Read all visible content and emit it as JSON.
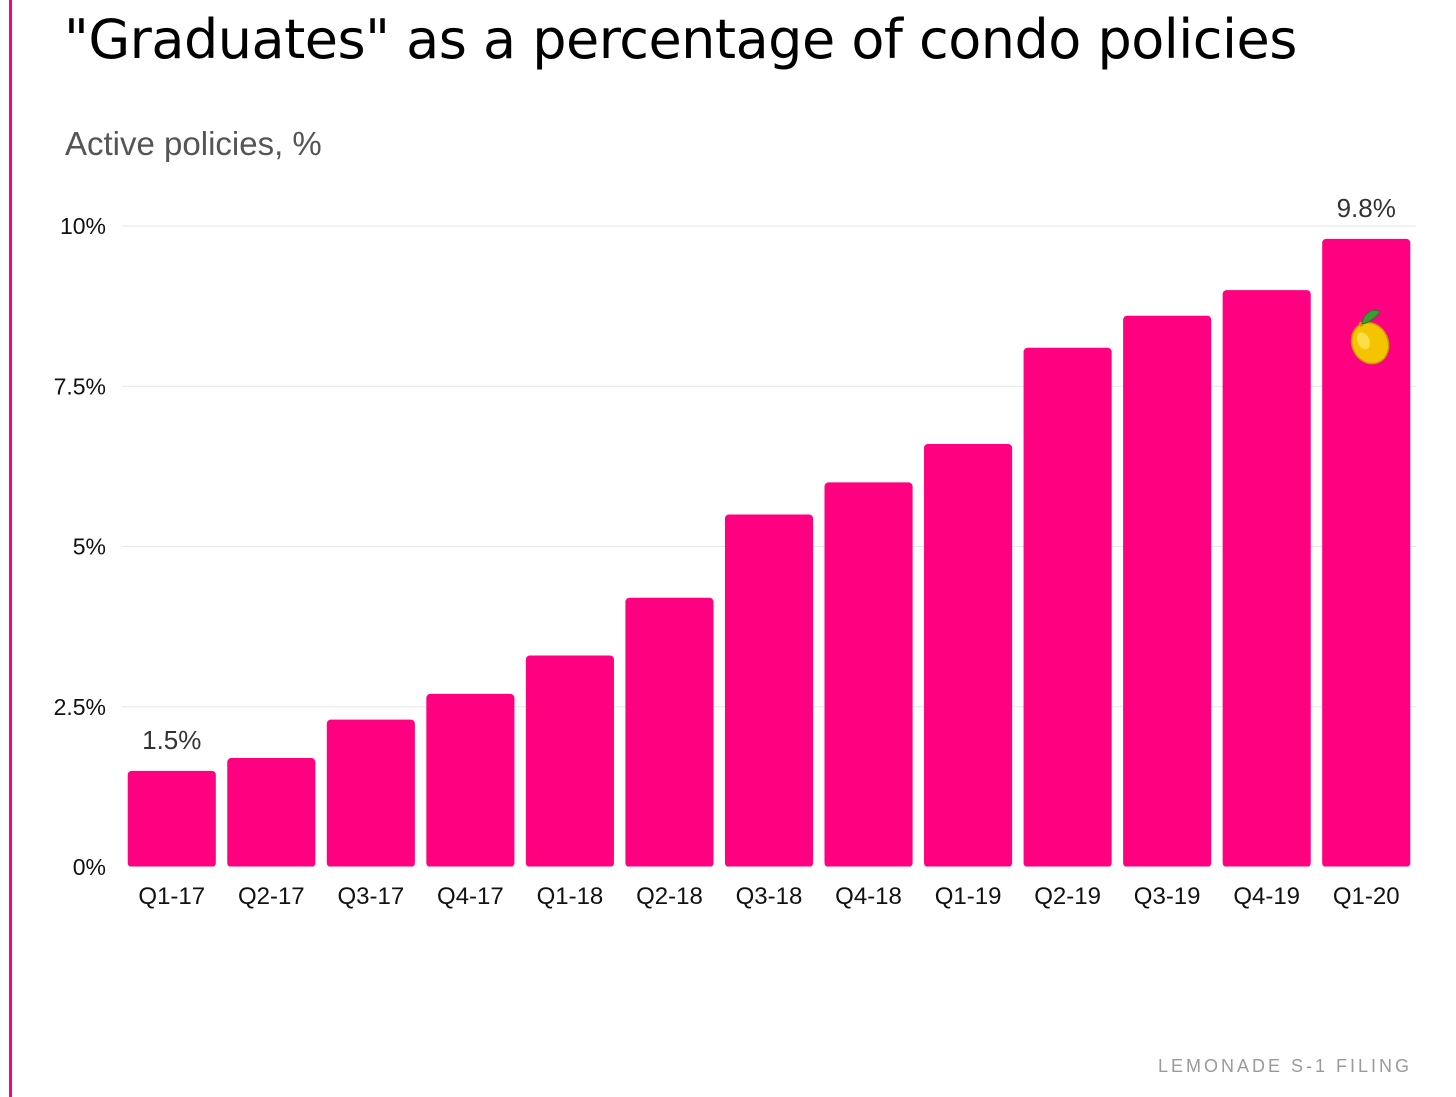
{
  "colors": {
    "accent": "#ff0080",
    "bar": "#ff0080",
    "grid": "#e6e6e6",
    "tick_text": "#111111",
    "label_text": "#333333"
  },
  "chart_data": {
    "type": "bar",
    "title": "\"Graduates\" as a percentage of condo policies",
    "subtitle": "Active policies, %",
    "xlabel": "",
    "ylabel": "",
    "categories": [
      "Q1-17",
      "Q2-17",
      "Q3-17",
      "Q4-17",
      "Q1-18",
      "Q2-18",
      "Q3-18",
      "Q4-18",
      "Q1-19",
      "Q2-19",
      "Q3-19",
      "Q4-19",
      "Q1-20"
    ],
    "values": [
      1.5,
      1.7,
      2.3,
      2.7,
      3.3,
      4.2,
      5.5,
      6.0,
      6.6,
      8.1,
      8.6,
      9.0,
      9.8
    ],
    "ylim": [
      0,
      10
    ],
    "y_ticks": [
      0,
      2.5,
      5,
      7.5,
      10
    ],
    "y_tick_labels": [
      "0%",
      "2.5%",
      "5%",
      "7.5%",
      "10%"
    ],
    "data_labels": [
      {
        "index": 0,
        "text": "1.5%"
      },
      {
        "index": 12,
        "text": "9.8%"
      }
    ],
    "grid": true,
    "legend": "none",
    "annotation_icon": {
      "index": 12,
      "icon": "lemon-icon"
    }
  },
  "footer": {
    "source": "LEMONADE S-1 FILING"
  }
}
